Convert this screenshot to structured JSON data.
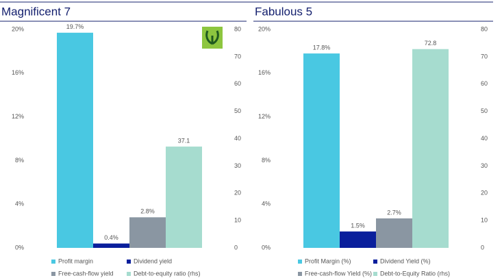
{
  "chart_data": [
    {
      "type": "bar",
      "title": "Magnificent 7",
      "ylim": [
        0,
        20
      ],
      "yticks": [
        {
          "value": 0,
          "label": "0%"
        },
        {
          "value": 4,
          "label": "4%"
        },
        {
          "value": 8,
          "label": "8%"
        },
        {
          "value": 12,
          "label": "12%"
        },
        {
          "value": 16,
          "label": "16%"
        },
        {
          "value": 20,
          "label": "20%"
        }
      ],
      "y2lim": [
        0,
        80
      ],
      "y2ticks": [
        0,
        10,
        20,
        30,
        40,
        50,
        60,
        70,
        80
      ],
      "series": [
        {
          "name": "Profit margin",
          "color": "#49c8e2",
          "values": [
            19.7
          ],
          "value_labels": [
            "19.7%"
          ]
        },
        {
          "name": "Dividend yield",
          "color": "#0a1f9c",
          "values": [
            0.4
          ],
          "value_labels": [
            "0.4%"
          ]
        },
        {
          "name": "Free-cash-flow yield",
          "color": "#8a96a2",
          "values": [
            2.8
          ],
          "value_labels": [
            "2.8%"
          ]
        },
        {
          "name": "Debt-to-equity ratio (rhs)",
          "color": "#a6dccf",
          "axis": "y2",
          "values": [
            37.1
          ]
        }
      ]
    },
    {
      "type": "bar",
      "title": "Fabulous 5",
      "ylim": [
        0,
        20
      ],
      "yticks": [
        {
          "value": 0,
          "label": "0%"
        },
        {
          "value": 4,
          "label": "4%"
        },
        {
          "value": 8,
          "label": "8%"
        },
        {
          "value": 12,
          "label": "12%"
        },
        {
          "value": 16,
          "label": "16%"
        },
        {
          "value": 20,
          "label": "20%"
        }
      ],
      "y2lim": [
        0,
        80
      ],
      "y2ticks": [
        0,
        10,
        20,
        30,
        40,
        50,
        60,
        70,
        80
      ],
      "series": [
        {
          "name": "Profit Margin (%)",
          "color": "#49c8e2",
          "values": [
            17.8
          ],
          "value_labels": [
            "17.8%"
          ]
        },
        {
          "name": "Dividend Yield (%)",
          "color": "#0a1f9c",
          "values": [
            1.5
          ],
          "value_labels": [
            "1.5%"
          ]
        },
        {
          "name": "Free-cash-flow Yield (%)",
          "color": "#8a96a2",
          "values": [
            2.7
          ],
          "value_labels": [
            "2.7%"
          ]
        },
        {
          "name": "Debt-to-Equity Ratio (rhs)",
          "color": "#a6dccf",
          "axis": "y2",
          "values": [
            72.8
          ]
        }
      ]
    }
  ]
}
